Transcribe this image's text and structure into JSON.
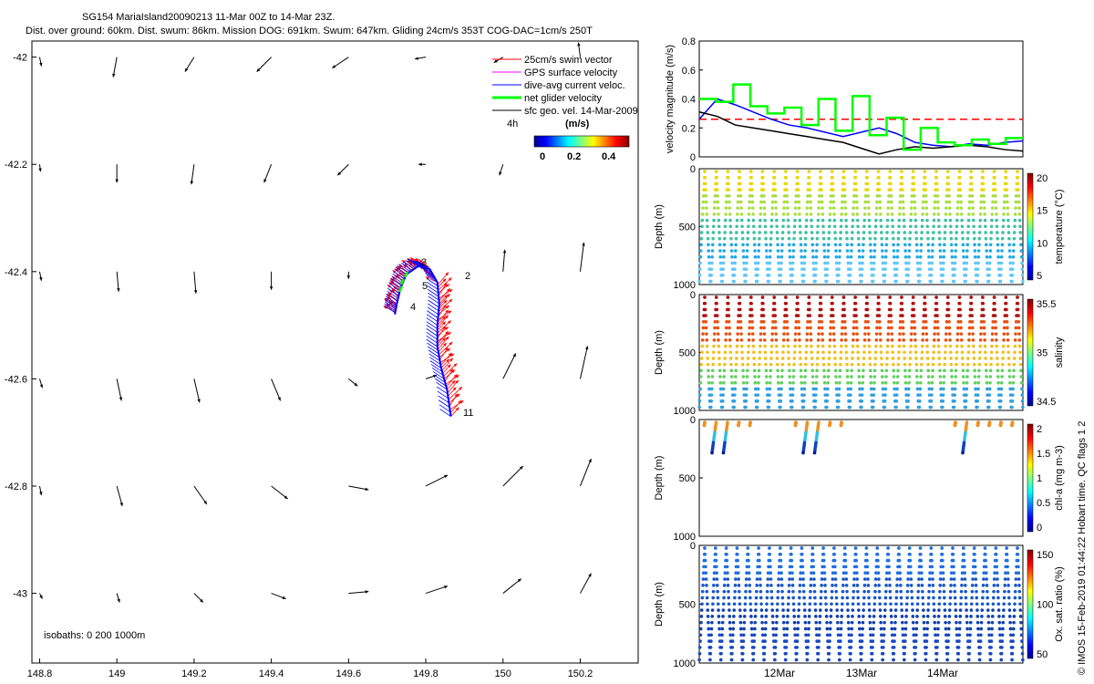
{
  "title": {
    "line1": "SG154 MariaIsland20090213 11-Mar 00Z to 14-Mar 23Z.",
    "line2": "Dist. over ground: 60km. Dist. swum: 86km. Mission DOG: 691km. Swum: 647km. Gliding 24cm/s 353T COG-DAC=1cm/s 250T"
  },
  "colors": {
    "swim": "#ff0000",
    "gps": "#ff00ff",
    "dac": "#0000ff",
    "net": "#00ff00",
    "sfc": "#000000"
  },
  "map": {
    "legend": [
      "25cm/s swim vector",
      "GPS surface velocity",
      "dive-avg current veloc.",
      "net glider velocity",
      "sfc geo. vel. 14-Mar-2009"
    ],
    "legend_colors": [
      "#ff0000",
      "#ff00ff",
      "#0000ff",
      "#00ff00",
      "#000000"
    ],
    "time_label": "4h",
    "colorbar_label": "(m/s)",
    "colorbar_ticks": [
      "0",
      "0.2",
      "0.4"
    ],
    "isobaths": "isobaths: 0   200   1000m",
    "track_labels": [
      "2",
      "3",
      "4",
      "5",
      "11"
    ]
  },
  "chart_data": [
    {
      "type": "quiver-map",
      "xlim": [
        148.78,
        150.35
      ],
      "ylim": [
        -43.13,
        -41.97
      ],
      "xticks": [
        148.8,
        149,
        149.2,
        149.4,
        149.6,
        149.8,
        150,
        150.2
      ],
      "xtick_labels": [
        "148.8",
        "149",
        "149.2",
        "149.4",
        "149.6",
        "149.8",
        "150",
        "150.2"
      ],
      "yticks": [
        -42,
        -42.2,
        -42.4,
        -42.6,
        -42.8,
        -43
      ],
      "ytick_labels": [
        "-42",
        "-42.2",
        "-42.4",
        "-42.6",
        "-42.8",
        "-43"
      ],
      "sfc_arrows": [
        [
          148.8,
          -42,
          2,
          -10
        ],
        [
          149,
          -42,
          -4,
          -22
        ],
        [
          149.2,
          -42,
          -10,
          -16
        ],
        [
          149.4,
          -42,
          -16,
          -16
        ],
        [
          149.6,
          -42,
          -18,
          -12
        ],
        [
          149.8,
          -42,
          -12,
          -2
        ],
        [
          150,
          -42,
          -10,
          -6
        ],
        [
          150.2,
          -42,
          -2,
          16
        ],
        [
          148.8,
          -42.2,
          1,
          -8
        ],
        [
          149,
          -42.2,
          0,
          -20
        ],
        [
          149.2,
          -42.2,
          -3,
          -22
        ],
        [
          149.4,
          -42.2,
          -8,
          -20
        ],
        [
          149.6,
          -42.2,
          -12,
          -12
        ],
        [
          149.8,
          -42.2,
          -8,
          0
        ],
        [
          150,
          -42.2,
          -4,
          -12
        ],
        [
          148.8,
          -42.4,
          2,
          -10
        ],
        [
          149,
          -42.4,
          2,
          -22
        ],
        [
          149.2,
          -42.4,
          2,
          -24
        ],
        [
          149.4,
          -42.4,
          0,
          -20
        ],
        [
          149.6,
          -42.4,
          0,
          -8
        ],
        [
          150,
          -42.4,
          2,
          24
        ],
        [
          150.2,
          -42.4,
          4,
          32
        ],
        [
          148.8,
          -42.6,
          3,
          -10
        ],
        [
          149,
          -42.6,
          5,
          -24
        ],
        [
          149.2,
          -42.6,
          6,
          -26
        ],
        [
          149.4,
          -42.6,
          10,
          -24
        ],
        [
          149.6,
          -42.6,
          10,
          -8
        ],
        [
          149.8,
          -42.6,
          12,
          4
        ],
        [
          150,
          -42.6,
          14,
          28
        ],
        [
          150.2,
          -42.6,
          8,
          36
        ],
        [
          148.8,
          -42.8,
          2,
          -10
        ],
        [
          149,
          -42.8,
          6,
          -22
        ],
        [
          149.2,
          -42.8,
          14,
          -20
        ],
        [
          149.4,
          -42.8,
          18,
          -14
        ],
        [
          149.6,
          -42.8,
          22,
          -4
        ],
        [
          149.8,
          -42.8,
          24,
          12
        ],
        [
          150,
          -42.8,
          22,
          22
        ],
        [
          150.2,
          -42.8,
          12,
          30
        ],
        [
          148.8,
          -43,
          3,
          -6
        ],
        [
          149,
          -43,
          3,
          -10
        ],
        [
          149.2,
          -43,
          10,
          -10
        ],
        [
          149.4,
          -43,
          16,
          -6
        ],
        [
          149.6,
          -43,
          22,
          2
        ],
        [
          149.8,
          -43,
          24,
          8
        ],
        [
          150,
          -43,
          20,
          16
        ],
        [
          150.2,
          -43,
          12,
          22
        ]
      ],
      "track": [
        [
          149.865,
          -42.67
        ],
        [
          149.855,
          -42.62
        ],
        [
          149.84,
          -42.58
        ],
        [
          149.83,
          -42.54
        ],
        [
          149.83,
          -42.5
        ],
        [
          149.835,
          -42.46
        ],
        [
          149.83,
          -42.42
        ],
        [
          149.81,
          -42.395
        ],
        [
          149.78,
          -42.39
        ],
        [
          149.75,
          -42.405
        ],
        [
          149.735,
          -42.43
        ],
        [
          149.725,
          -42.46
        ],
        [
          149.72,
          -42.48
        ]
      ]
    },
    {
      "type": "line",
      "ylabel": "velocity magnitude (m/s)",
      "ylim": [
        0,
        0.8
      ],
      "yticks": [
        "0",
        "0.2",
        "0.4",
        "0.6",
        "0.8"
      ],
      "series": [
        {
          "name": "swim (red dashed)",
          "values": [
            0.26,
            0.26
          ]
        },
        {
          "name": "dive-avg current",
          "values": [
            0.26,
            0.4,
            0.36,
            0.31,
            0.26,
            0.22,
            0.2,
            0.17,
            0.14,
            0.17,
            0.2,
            0.16,
            0.1,
            0.08,
            0.07,
            0.09,
            0.08,
            0.1,
            0.11
          ]
        },
        {
          "name": "sfc geo vel",
          "values": [
            0.31,
            0.28,
            0.22,
            0.2,
            0.18,
            0.16,
            0.14,
            0.12,
            0.1,
            0.06,
            0.02,
            0.05,
            0.07,
            0.06,
            0.07,
            0.08,
            0.07,
            0.05,
            0.04
          ]
        },
        {
          "name": "net glider vel",
          "values": [
            0.4,
            0.38,
            0.5,
            0.35,
            0.3,
            0.34,
            0.22,
            0.4,
            0.18,
            0.42,
            0.15,
            0.27,
            0.05,
            0.2,
            0.1,
            0.08,
            0.12,
            0.09,
            0.13
          ]
        }
      ]
    },
    {
      "type": "scatter",
      "ylabel": "Depth (m)",
      "cbar_label": "temperature (°C)",
      "yticks": [
        "0",
        "500",
        "1000"
      ],
      "cbar_ticks": [
        "5",
        "10",
        "15",
        "20"
      ],
      "profiles": 28,
      "max_depth": 1000,
      "colors_top_to_bottom": [
        "#e8d808",
        "#a8e040",
        "#40c0a0",
        "#20a8e8",
        "#60c8f8"
      ]
    },
    {
      "type": "scatter",
      "ylabel": "Depth (m)",
      "cbar_label": "salinity",
      "yticks": [
        "0",
        "500",
        "1000"
      ],
      "cbar_ticks": [
        "34.5",
        "35",
        "35.5"
      ],
      "profiles": 28,
      "max_depth": 1000,
      "colors_top_to_bottom": [
        "#b01010",
        "#e85010",
        "#f0c020",
        "#60d060",
        "#30a0e0"
      ]
    },
    {
      "type": "scatter",
      "ylabel": "Depth (m)",
      "cbar_label": "chl-a (mg m-3)",
      "yticks": [
        "0",
        "500",
        "1000"
      ],
      "cbar_ticks": [
        "0",
        "0.5",
        "1",
        "1.5",
        "2"
      ],
      "profiles": 16,
      "max_depth": 250,
      "colors_top_to_bottom": [
        "#f09020",
        "#30c0e0",
        "#1040c0",
        "#081890"
      ]
    },
    {
      "type": "scatter",
      "ylabel": "Depth (m)",
      "cbar_label": "Ox. sat. ratio (%)",
      "yticks": [
        "0",
        "500",
        "1000"
      ],
      "cbar_ticks": [
        "50",
        "100",
        "150"
      ],
      "profiles": 30,
      "max_depth": 1000,
      "colors_top_to_bottom": [
        "#2070e0",
        "#1858c8",
        "#1040b0",
        "#1848c0"
      ]
    }
  ],
  "time_axis": {
    "labels": [
      "12Mar",
      "13Mar",
      "14Mar"
    ]
  },
  "side_note": "© IMOS 15-Feb-2019 01:44:22 Hobart time. QC flags 1  2"
}
